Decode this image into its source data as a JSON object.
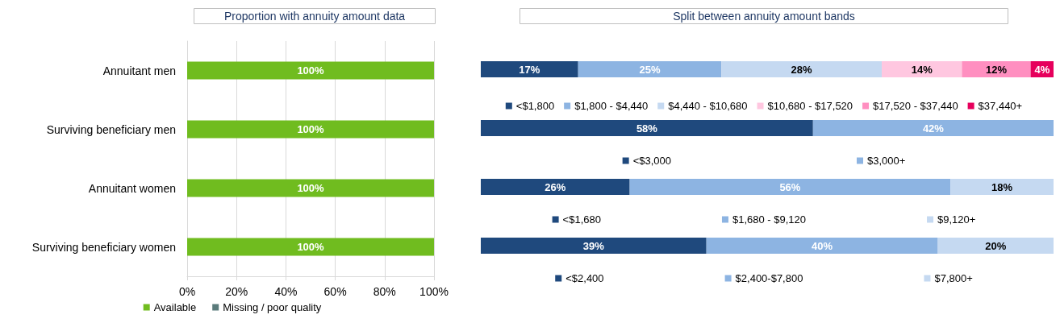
{
  "chart_data": [
    {
      "type": "bar",
      "title": "Proportion with annuity amount data",
      "orientation": "horizontal",
      "stacked": true,
      "categories": [
        "Annuitant men",
        "Surviving beneficiary men",
        "Annuitant women",
        "Surviving beneficiary women"
      ],
      "series": [
        {
          "name": "Available",
          "color": "#70bc1f",
          "values": [
            100,
            100,
            100,
            100
          ],
          "value_labels": [
            "100%",
            "100%",
            "100%",
            "100%"
          ]
        },
        {
          "name": "Missing / poor quality",
          "color": "#5a7b7b",
          "values": [
            0,
            0,
            0,
            0
          ]
        }
      ],
      "xlim": [
        0,
        100
      ],
      "xticks": [
        {
          "value": 0,
          "label": "0%"
        },
        {
          "value": 20,
          "label": "20%"
        },
        {
          "value": 40,
          "label": "40%"
        },
        {
          "value": 60,
          "label": "60%"
        },
        {
          "value": 80,
          "label": "80%"
        },
        {
          "value": 100,
          "label": "100%"
        }
      ],
      "grid": "x",
      "legend": "bottom"
    },
    {
      "type": "bar",
      "title": "Split between annuity amount bands",
      "orientation": "horizontal",
      "stacked": true,
      "categories": [
        null
      ],
      "series": [
        {
          "name": "<$1,800",
          "color": "#1f497d",
          "values": [
            17
          ],
          "value_labels": [
            "17%"
          ]
        },
        {
          "name": "$1,800 - $4,440",
          "color": "#8db4e2",
          "values": [
            25
          ],
          "value_labels": [
            "25%"
          ]
        },
        {
          "name": "$4,440 - $10,680",
          "color": "#c5d9f1",
          "values": [
            28
          ],
          "value_labels": [
            "28%"
          ]
        },
        {
          "name": "$10,680 - $17,520",
          "color": "#ffc7e0",
          "values": [
            14
          ],
          "value_labels": [
            "14%"
          ]
        },
        {
          "name": "$17,520 - $37,440",
          "color": "#ff8fc0",
          "values": [
            12
          ],
          "value_labels": [
            "12%"
          ]
        },
        {
          "name": "$37,440+",
          "color": "#e6005c",
          "values": [
            4
          ],
          "value_labels": [
            "4%"
          ]
        }
      ],
      "legend": "bottom"
    },
    {
      "type": "bar",
      "orientation": "horizontal",
      "stacked": true,
      "categories": [
        null
      ],
      "series": [
        {
          "name": "<$3,000",
          "color": "#1f497d",
          "values": [
            58
          ],
          "value_labels": [
            "58%"
          ]
        },
        {
          "name": "$3,000+",
          "color": "#8db4e2",
          "values": [
            42
          ],
          "value_labels": [
            "42%"
          ]
        }
      ],
      "legend": "bottom"
    },
    {
      "type": "bar",
      "orientation": "horizontal",
      "stacked": true,
      "categories": [
        null
      ],
      "series": [
        {
          "name": "<$1,680",
          "color": "#1f497d",
          "values": [
            26
          ],
          "value_labels": [
            "26%"
          ]
        },
        {
          "name": "$1,680 - $9,120",
          "color": "#8db4e2",
          "values": [
            56
          ],
          "value_labels": [
            "56%"
          ]
        },
        {
          "name": "$9,120+",
          "color": "#c5d9f1",
          "values": [
            18
          ],
          "value_labels": [
            "18%"
          ]
        }
      ],
      "legend": "bottom"
    },
    {
      "type": "bar",
      "orientation": "horizontal",
      "stacked": true,
      "categories": [
        null
      ],
      "series": [
        {
          "name": "<$2,400",
          "color": "#1f497d",
          "values": [
            39
          ],
          "value_labels": [
            "39%"
          ]
        },
        {
          "name": "$2,400-$7,800",
          "color": "#8db4e2",
          "values": [
            40
          ],
          "value_labels": [
            "40%"
          ]
        },
        {
          "name": "$7,800+",
          "color": "#c5d9f1",
          "values": [
            20
          ],
          "value_labels": [
            "20%"
          ]
        }
      ],
      "legend": "bottom"
    }
  ]
}
